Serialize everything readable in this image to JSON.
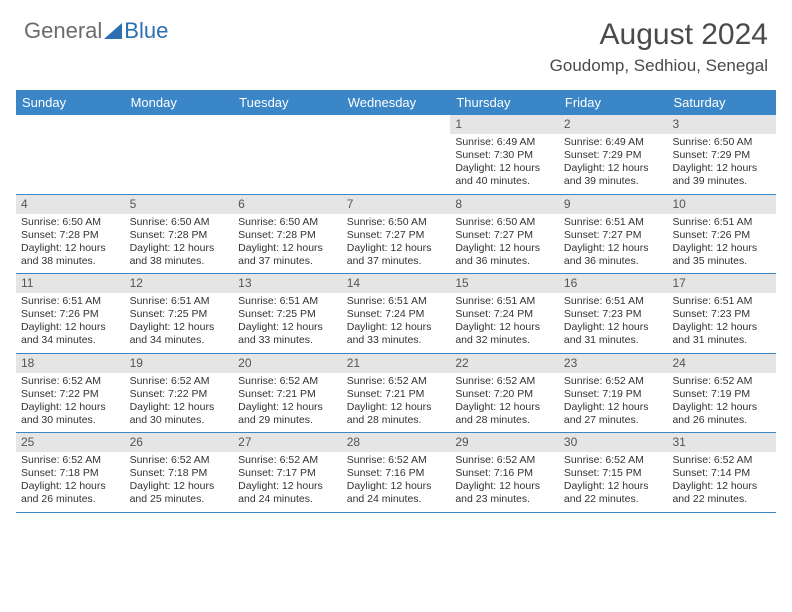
{
  "logo": {
    "word1": "General",
    "word2": "Blue"
  },
  "title": "August 2024",
  "location": "Goudomp, Sedhiou, Senegal",
  "colors": {
    "header_bg": "#3b86c6",
    "header_text": "#ffffff",
    "daynum_bg": "#e5e5e5",
    "divider": "#3b86c6",
    "text": "#333333",
    "logo_gray": "#6b6b6b",
    "logo_blue": "#2d6fb3"
  },
  "typography": {
    "title_fontsize": 30,
    "location_fontsize": 17,
    "dayheader_fontsize": 13,
    "daynum_fontsize": 12,
    "body_fontsize": 10.5
  },
  "day_names": [
    "Sunday",
    "Monday",
    "Tuesday",
    "Wednesday",
    "Thursday",
    "Friday",
    "Saturday"
  ],
  "weeks": [
    [
      {
        "n": "",
        "lines": [
          "",
          "",
          "",
          ""
        ]
      },
      {
        "n": "",
        "lines": [
          "",
          "",
          "",
          ""
        ]
      },
      {
        "n": "",
        "lines": [
          "",
          "",
          "",
          ""
        ]
      },
      {
        "n": "",
        "lines": [
          "",
          "",
          "",
          ""
        ]
      },
      {
        "n": "1",
        "lines": [
          "Sunrise: 6:49 AM",
          "Sunset: 7:30 PM",
          "Daylight: 12 hours",
          "and 40 minutes."
        ]
      },
      {
        "n": "2",
        "lines": [
          "Sunrise: 6:49 AM",
          "Sunset: 7:29 PM",
          "Daylight: 12 hours",
          "and 39 minutes."
        ]
      },
      {
        "n": "3",
        "lines": [
          "Sunrise: 6:50 AM",
          "Sunset: 7:29 PM",
          "Daylight: 12 hours",
          "and 39 minutes."
        ]
      }
    ],
    [
      {
        "n": "4",
        "lines": [
          "Sunrise: 6:50 AM",
          "Sunset: 7:28 PM",
          "Daylight: 12 hours",
          "and 38 minutes."
        ]
      },
      {
        "n": "5",
        "lines": [
          "Sunrise: 6:50 AM",
          "Sunset: 7:28 PM",
          "Daylight: 12 hours",
          "and 38 minutes."
        ]
      },
      {
        "n": "6",
        "lines": [
          "Sunrise: 6:50 AM",
          "Sunset: 7:28 PM",
          "Daylight: 12 hours",
          "and 37 minutes."
        ]
      },
      {
        "n": "7",
        "lines": [
          "Sunrise: 6:50 AM",
          "Sunset: 7:27 PM",
          "Daylight: 12 hours",
          "and 37 minutes."
        ]
      },
      {
        "n": "8",
        "lines": [
          "Sunrise: 6:50 AM",
          "Sunset: 7:27 PM",
          "Daylight: 12 hours",
          "and 36 minutes."
        ]
      },
      {
        "n": "9",
        "lines": [
          "Sunrise: 6:51 AM",
          "Sunset: 7:27 PM",
          "Daylight: 12 hours",
          "and 36 minutes."
        ]
      },
      {
        "n": "10",
        "lines": [
          "Sunrise: 6:51 AM",
          "Sunset: 7:26 PM",
          "Daylight: 12 hours",
          "and 35 minutes."
        ]
      }
    ],
    [
      {
        "n": "11",
        "lines": [
          "Sunrise: 6:51 AM",
          "Sunset: 7:26 PM",
          "Daylight: 12 hours",
          "and 34 minutes."
        ]
      },
      {
        "n": "12",
        "lines": [
          "Sunrise: 6:51 AM",
          "Sunset: 7:25 PM",
          "Daylight: 12 hours",
          "and 34 minutes."
        ]
      },
      {
        "n": "13",
        "lines": [
          "Sunrise: 6:51 AM",
          "Sunset: 7:25 PM",
          "Daylight: 12 hours",
          "and 33 minutes."
        ]
      },
      {
        "n": "14",
        "lines": [
          "Sunrise: 6:51 AM",
          "Sunset: 7:24 PM",
          "Daylight: 12 hours",
          "and 33 minutes."
        ]
      },
      {
        "n": "15",
        "lines": [
          "Sunrise: 6:51 AM",
          "Sunset: 7:24 PM",
          "Daylight: 12 hours",
          "and 32 minutes."
        ]
      },
      {
        "n": "16",
        "lines": [
          "Sunrise: 6:51 AM",
          "Sunset: 7:23 PM",
          "Daylight: 12 hours",
          "and 31 minutes."
        ]
      },
      {
        "n": "17",
        "lines": [
          "Sunrise: 6:51 AM",
          "Sunset: 7:23 PM",
          "Daylight: 12 hours",
          "and 31 minutes."
        ]
      }
    ],
    [
      {
        "n": "18",
        "lines": [
          "Sunrise: 6:52 AM",
          "Sunset: 7:22 PM",
          "Daylight: 12 hours",
          "and 30 minutes."
        ]
      },
      {
        "n": "19",
        "lines": [
          "Sunrise: 6:52 AM",
          "Sunset: 7:22 PM",
          "Daylight: 12 hours",
          "and 30 minutes."
        ]
      },
      {
        "n": "20",
        "lines": [
          "Sunrise: 6:52 AM",
          "Sunset: 7:21 PM",
          "Daylight: 12 hours",
          "and 29 minutes."
        ]
      },
      {
        "n": "21",
        "lines": [
          "Sunrise: 6:52 AM",
          "Sunset: 7:21 PM",
          "Daylight: 12 hours",
          "and 28 minutes."
        ]
      },
      {
        "n": "22",
        "lines": [
          "Sunrise: 6:52 AM",
          "Sunset: 7:20 PM",
          "Daylight: 12 hours",
          "and 28 minutes."
        ]
      },
      {
        "n": "23",
        "lines": [
          "Sunrise: 6:52 AM",
          "Sunset: 7:19 PM",
          "Daylight: 12 hours",
          "and 27 minutes."
        ]
      },
      {
        "n": "24",
        "lines": [
          "Sunrise: 6:52 AM",
          "Sunset: 7:19 PM",
          "Daylight: 12 hours",
          "and 26 minutes."
        ]
      }
    ],
    [
      {
        "n": "25",
        "lines": [
          "Sunrise: 6:52 AM",
          "Sunset: 7:18 PM",
          "Daylight: 12 hours",
          "and 26 minutes."
        ]
      },
      {
        "n": "26",
        "lines": [
          "Sunrise: 6:52 AM",
          "Sunset: 7:18 PM",
          "Daylight: 12 hours",
          "and 25 minutes."
        ]
      },
      {
        "n": "27",
        "lines": [
          "Sunrise: 6:52 AM",
          "Sunset: 7:17 PM",
          "Daylight: 12 hours",
          "and 24 minutes."
        ]
      },
      {
        "n": "28",
        "lines": [
          "Sunrise: 6:52 AM",
          "Sunset: 7:16 PM",
          "Daylight: 12 hours",
          "and 24 minutes."
        ]
      },
      {
        "n": "29",
        "lines": [
          "Sunrise: 6:52 AM",
          "Sunset: 7:16 PM",
          "Daylight: 12 hours",
          "and 23 minutes."
        ]
      },
      {
        "n": "30",
        "lines": [
          "Sunrise: 6:52 AM",
          "Sunset: 7:15 PM",
          "Daylight: 12 hours",
          "and 22 minutes."
        ]
      },
      {
        "n": "31",
        "lines": [
          "Sunrise: 6:52 AM",
          "Sunset: 7:14 PM",
          "Daylight: 12 hours",
          "and 22 minutes."
        ]
      }
    ]
  ]
}
